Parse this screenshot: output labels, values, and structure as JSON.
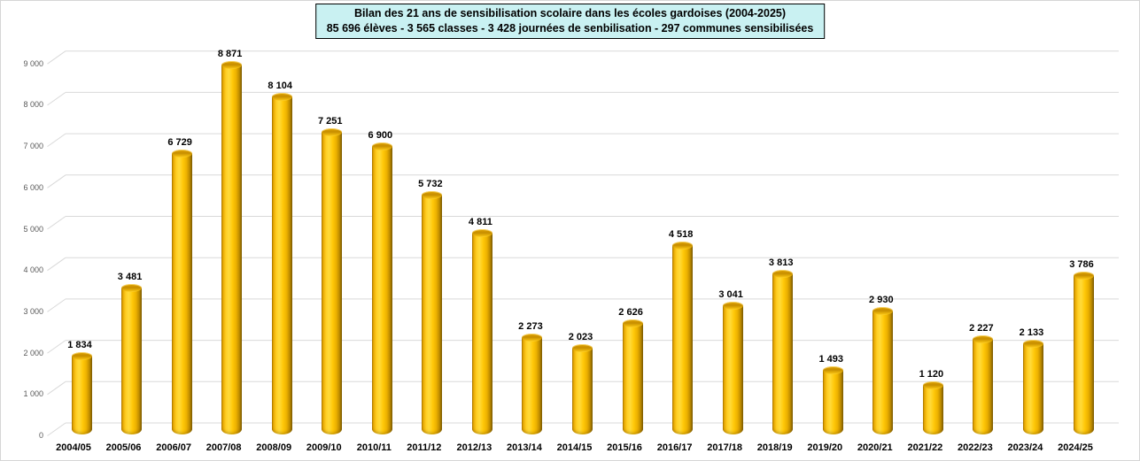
{
  "title_box": {
    "line1": "Bilan des 21 ans de sensibilisation scolaire dans les écoles gardoises (2004-2025)",
    "line2": "85 696 élèves - 3 565 classes - 3 428 journées de senbilisation - 297 communes sensibilisées",
    "background_color": "#c9f1f2",
    "border_color": "#000000",
    "text_color": "#000000"
  },
  "chart_data": {
    "type": "bar",
    "style": "3d-cylinder",
    "title": "Bilan des 21 ans de sensibilisation scolaire dans les écoles gardoises (2004-2025)",
    "subtitle": "85 696 élèves - 3 565 classes - 3 428 journées de senbilisation - 297 communes sensibilisées",
    "categories": [
      "2004/05",
      "2005/06",
      "2006/07",
      "2007/08",
      "2008/09",
      "2009/10",
      "2010/11",
      "2011/12",
      "2012/13",
      "2013/14",
      "2014/15",
      "2015/16",
      "2016/17",
      "2017/18",
      "2018/19",
      "2019/20",
      "2020/21",
      "2021/22",
      "2022/23",
      "2023/24",
      "2024/25"
    ],
    "values": [
      1834,
      3481,
      6729,
      8871,
      8104,
      7251,
      6900,
      5732,
      4811,
      2273,
      2023,
      2626,
      4518,
      3041,
      3813,
      1493,
      2930,
      1120,
      2227,
      2133,
      3786
    ],
    "data_labels": [
      "1 834",
      "3 481",
      "6 729",
      "8 871",
      "8 104",
      "7 251",
      "6 900",
      "5 732",
      "4 811",
      "2 273",
      "2 023",
      "2 626",
      "4 518",
      "3 041",
      "3 813",
      "1 493",
      "2 930",
      "1 120",
      "2 227",
      "2 133",
      "3 786"
    ],
    "y_tick_values": [
      0,
      1000,
      2000,
      3000,
      4000,
      5000,
      6000,
      7000,
      8000,
      9000
    ],
    "y_tick_labels": [
      "0",
      "1 000",
      "2 000",
      "3 000",
      "4 000",
      "5 000",
      "6 000",
      "7 000",
      "8 000",
      "9 000"
    ],
    "ylim": [
      0,
      9000
    ],
    "xlabel": "",
    "ylabel": "",
    "grid": true,
    "legend_position": "none",
    "bar_color": "#ffc000",
    "bar_edge_dark": "#7d5c00",
    "gridline_color": "#d9d9d9",
    "axis_tick_color": "#595959",
    "plot_background": "#ffffff"
  }
}
